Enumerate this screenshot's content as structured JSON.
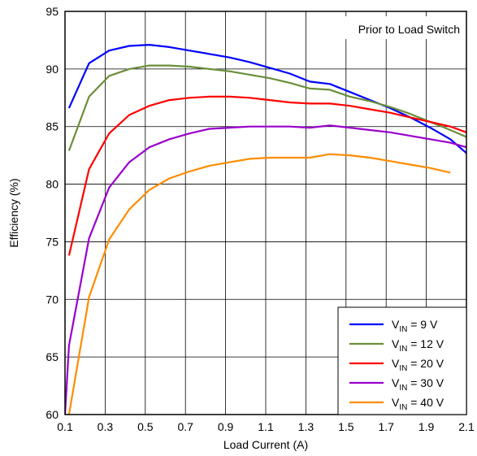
{
  "chart_data": {
    "type": "line",
    "title": "",
    "annotation": "Prior to Load Switch",
    "xlabel": "Load Current (A)",
    "ylabel": "Efficiency (%)",
    "xlim": [
      0.1,
      2.1
    ],
    "ylim": [
      60,
      95
    ],
    "x_ticks": [
      0.1,
      0.3,
      0.5,
      0.7,
      0.9,
      1.1,
      1.3,
      1.5,
      1.7,
      1.9,
      2.1
    ],
    "x_tick_labels": [
      "0.1",
      "0.3",
      "0.5",
      "0.7",
      "0.9",
      "1.1",
      "1.3",
      "1.5",
      "1.7",
      "1.9",
      "2.1"
    ],
    "y_ticks": [
      60,
      65,
      70,
      75,
      80,
      85,
      90,
      95
    ],
    "y_tick_labels": [
      "60",
      "65",
      "70",
      "75",
      "80",
      "85",
      "90",
      "95"
    ],
    "grid": true,
    "legend_position": "bottom-right",
    "series": [
      {
        "name": "V_IN = 9 V",
        "legend": {
          "main": "V",
          "sub": "IN",
          "rest": " = 9 V"
        },
        "color": "#0000ff",
        "x": [
          0.12,
          0.22,
          0.32,
          0.42,
          0.52,
          0.62,
          0.72,
          0.82,
          0.92,
          1.02,
          1.12,
          1.22,
          1.32,
          1.42,
          1.52,
          1.62,
          1.72,
          1.82,
          1.92,
          2.02,
          2.1
        ],
        "y": [
          86.6,
          90.5,
          91.6,
          92.0,
          92.1,
          91.9,
          91.6,
          91.3,
          91.0,
          90.6,
          90.1,
          89.6,
          88.9,
          88.7,
          88.0,
          87.3,
          86.6,
          85.8,
          84.9,
          83.9,
          82.7
        ]
      },
      {
        "name": "V_IN = 12 V",
        "legend": {
          "main": "V",
          "sub": "IN",
          "rest": " = 12 V"
        },
        "color": "#6b8e3a",
        "x": [
          0.12,
          0.22,
          0.32,
          0.42,
          0.52,
          0.62,
          0.72,
          0.82,
          0.92,
          1.02,
          1.12,
          1.22,
          1.32,
          1.42,
          1.52,
          1.62,
          1.72,
          1.82,
          1.92,
          2.02,
          2.1
        ],
        "y": [
          82.9,
          87.6,
          89.4,
          90.0,
          90.3,
          90.3,
          90.2,
          90.0,
          89.8,
          89.5,
          89.2,
          88.8,
          88.3,
          88.2,
          87.6,
          87.2,
          86.7,
          86.1,
          85.4,
          84.7,
          84.1
        ]
      },
      {
        "name": "V_IN = 20 V",
        "legend": {
          "main": "V",
          "sub": "IN",
          "rest": " = 20 V"
        },
        "color": "#ff0000",
        "x": [
          0.12,
          0.22,
          0.32,
          0.42,
          0.52,
          0.62,
          0.72,
          0.82,
          0.92,
          1.02,
          1.12,
          1.22,
          1.32,
          1.42,
          1.52,
          1.62,
          1.72,
          1.82,
          1.92,
          2.02,
          2.1
        ],
        "y": [
          73.8,
          81.3,
          84.4,
          86.0,
          86.8,
          87.3,
          87.5,
          87.6,
          87.6,
          87.5,
          87.3,
          87.1,
          87.0,
          87.0,
          86.8,
          86.5,
          86.2,
          85.8,
          85.4,
          85.0,
          84.5
        ]
      },
      {
        "name": "V_IN = 30 V",
        "legend": {
          "main": "V",
          "sub": "IN",
          "rest": " = 30 V"
        },
        "color": "#9900cc",
        "x": [
          0.1,
          0.12,
          0.22,
          0.32,
          0.42,
          0.52,
          0.62,
          0.72,
          0.82,
          0.92,
          1.02,
          1.12,
          1.22,
          1.32,
          1.42,
          1.52,
          1.62,
          1.72,
          1.82,
          1.92,
          2.02,
          2.1
        ],
        "y": [
          60.0,
          66.0,
          75.3,
          79.7,
          81.9,
          83.2,
          83.9,
          84.4,
          84.8,
          84.9,
          85.0,
          85.0,
          85.0,
          84.9,
          85.1,
          84.9,
          84.7,
          84.5,
          84.2,
          83.9,
          83.6,
          83.2
        ]
      },
      {
        "name": "V_IN = 40 V",
        "legend": {
          "main": "V",
          "sub": "IN",
          "rest": " = 40 V"
        },
        "color": "#ff8c00",
        "x": [
          0.12,
          0.22,
          0.32,
          0.42,
          0.52,
          0.62,
          0.72,
          0.82,
          0.92,
          1.02,
          1.12,
          1.22,
          1.32,
          1.42,
          1.52,
          1.62,
          1.72,
          1.82,
          1.92,
          2.02
        ],
        "y": [
          60.0,
          70.2,
          75.2,
          77.8,
          79.5,
          80.5,
          81.1,
          81.6,
          81.9,
          82.2,
          82.3,
          82.3,
          82.3,
          82.6,
          82.5,
          82.3,
          82.0,
          81.7,
          81.4,
          81.0
        ]
      }
    ]
  }
}
